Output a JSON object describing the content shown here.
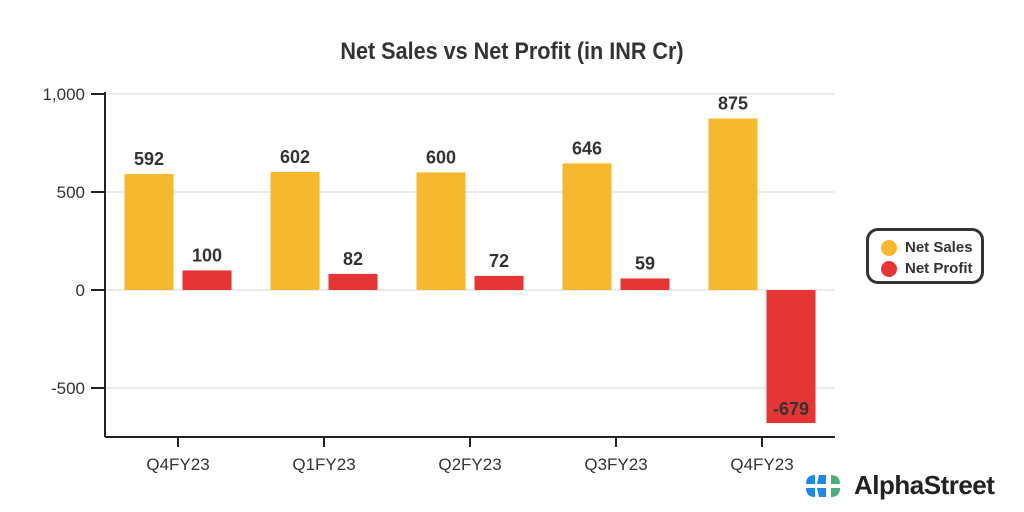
{
  "chart_data": {
    "type": "bar",
    "title": "Net Sales vs Net Profit (in INR Cr)",
    "xlabel": "",
    "ylabel": "",
    "categories": [
      "Q4FY23",
      "Q1FY23",
      "Q2FY23",
      "Q3FY23",
      "Q4FY23"
    ],
    "series": [
      {
        "name": "Net Sales",
        "color": "#F5B82E",
        "values": [
          592,
          602,
          600,
          646,
          875
        ]
      },
      {
        "name": "Net Profit",
        "color": "#E53535",
        "values": [
          100,
          82,
          72,
          59,
          -679
        ]
      }
    ],
    "ylim": [
      -750,
      1000
    ],
    "yticks": [
      1000,
      500,
      0,
      -500
    ],
    "ytick_labels": [
      "1,000",
      "500",
      "0",
      "-500"
    ],
    "grid": true,
    "legend_position": "right"
  },
  "brand": {
    "name": "AlphaStreet"
  }
}
